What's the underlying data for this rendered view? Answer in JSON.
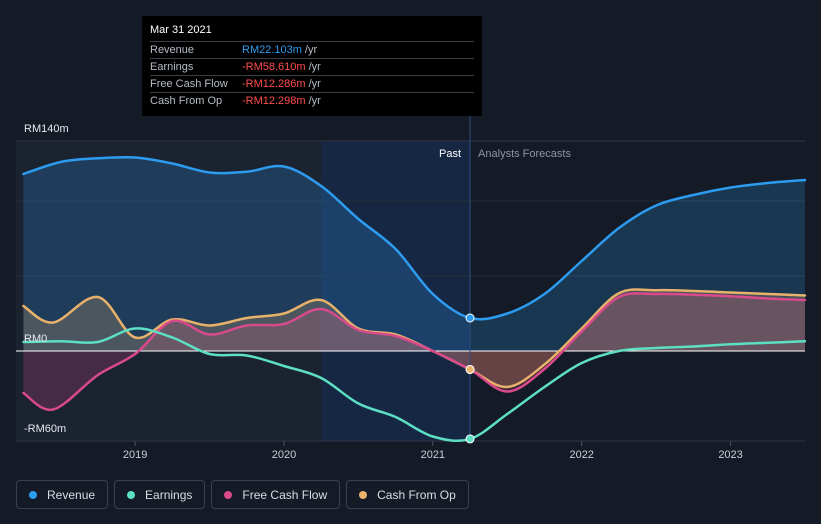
{
  "chart_data": {
    "type": "line",
    "y_axis": {
      "ticks": [
        {
          "label": "RM140m",
          "value": 140
        },
        {
          "label": "RM0",
          "value": 0
        },
        {
          "label": "-RM60m",
          "value": -60
        }
      ],
      "ylim": [
        -60,
        140
      ],
      "unit": "RM m"
    },
    "x_axis": {
      "ticks": [
        {
          "label": "2019",
          "value": 2019.0
        },
        {
          "label": "2020",
          "value": 2020.0
        },
        {
          "label": "2021",
          "value": 2021.0
        },
        {
          "label": "2022",
          "value": 2022.0
        },
        {
          "label": "2023",
          "value": 2023.0
        }
      ],
      "xlim": [
        2018.2,
        2023.5
      ]
    },
    "divider_x": 2021.25,
    "highlight_start_x": 2020.25,
    "past_label": "Past",
    "forecast_label": "Analysts Forecasts",
    "grid": true,
    "series": [
      {
        "name": "Revenue",
        "color": "#2d9cf0",
        "fill_opacity": 0.22,
        "points": [
          [
            2018.25,
            118
          ],
          [
            2018.5,
            126
          ],
          [
            2018.75,
            128.5
          ],
          [
            2019.0,
            129
          ],
          [
            2019.25,
            125
          ],
          [
            2019.5,
            119
          ],
          [
            2019.75,
            119.5
          ],
          [
            2020.0,
            123
          ],
          [
            2020.25,
            110
          ],
          [
            2020.5,
            88
          ],
          [
            2020.75,
            68
          ],
          [
            2021.0,
            38
          ],
          [
            2021.25,
            22
          ],
          [
            2021.5,
            25
          ],
          [
            2021.75,
            38
          ],
          [
            2022.0,
            60
          ],
          [
            2022.25,
            82
          ],
          [
            2022.5,
            97
          ],
          [
            2022.75,
            104
          ],
          [
            2023.0,
            109
          ],
          [
            2023.25,
            112
          ],
          [
            2023.5,
            114
          ]
        ]
      },
      {
        "name": "Earnings",
        "color": "#5ddfc4",
        "fill_opacity": 0,
        "points": [
          [
            2018.25,
            6
          ],
          [
            2018.5,
            6.5
          ],
          [
            2018.75,
            6
          ],
          [
            2019.0,
            15
          ],
          [
            2019.25,
            9
          ],
          [
            2019.5,
            -2
          ],
          [
            2019.75,
            -3
          ],
          [
            2020.0,
            -10
          ],
          [
            2020.25,
            -18
          ],
          [
            2020.5,
            -35
          ],
          [
            2020.75,
            -44
          ],
          [
            2021.0,
            -57
          ],
          [
            2021.25,
            -58.6
          ],
          [
            2021.5,
            -42
          ],
          [
            2021.75,
            -24
          ],
          [
            2022.0,
            -8
          ],
          [
            2022.25,
            0
          ],
          [
            2022.5,
            2
          ],
          [
            2022.75,
            3
          ],
          [
            2023.0,
            4.5
          ],
          [
            2023.25,
            5.5
          ],
          [
            2023.5,
            6.5
          ]
        ]
      },
      {
        "name": "Free Cash Flow",
        "color": "#d94a8c",
        "fill_opacity": 0.22,
        "points": [
          [
            2018.25,
            -28
          ],
          [
            2018.45,
            -39
          ],
          [
            2018.75,
            -16
          ],
          [
            2019.0,
            -2
          ],
          [
            2019.25,
            20
          ],
          [
            2019.5,
            11
          ],
          [
            2019.75,
            17
          ],
          [
            2020.0,
            18
          ],
          [
            2020.25,
            28
          ],
          [
            2020.5,
            14
          ],
          [
            2020.75,
            10
          ],
          [
            2021.0,
            0
          ],
          [
            2021.25,
            -12.3
          ],
          [
            2021.5,
            -27
          ],
          [
            2021.75,
            -12
          ],
          [
            2022.0,
            13
          ],
          [
            2022.25,
            36
          ],
          [
            2022.5,
            38
          ],
          [
            2022.75,
            37.5
          ],
          [
            2023.0,
            36.5
          ],
          [
            2023.25,
            35
          ],
          [
            2023.5,
            34
          ]
        ]
      },
      {
        "name": "Cash From Op",
        "color": "#e8b26b",
        "fill_opacity": 0.22,
        "points": [
          [
            2018.25,
            30
          ],
          [
            2018.45,
            19
          ],
          [
            2018.75,
            36
          ],
          [
            2019.0,
            9
          ],
          [
            2019.25,
            21
          ],
          [
            2019.5,
            17
          ],
          [
            2019.75,
            22
          ],
          [
            2020.0,
            25
          ],
          [
            2020.25,
            34
          ],
          [
            2020.5,
            15
          ],
          [
            2020.75,
            11
          ],
          [
            2021.0,
            0
          ],
          [
            2021.25,
            -12.3
          ],
          [
            2021.5,
            -24
          ],
          [
            2021.75,
            -9
          ],
          [
            2022.0,
            15
          ],
          [
            2022.25,
            38.5
          ],
          [
            2022.5,
            40.5
          ],
          [
            2022.75,
            40
          ],
          [
            2023.0,
            39
          ],
          [
            2023.25,
            38
          ],
          [
            2023.5,
            37
          ]
        ]
      }
    ],
    "tooltip": {
      "date": "Mar 31 2021",
      "rows": [
        {
          "label": "Revenue",
          "value": "RM22.103m",
          "unit": "/yr",
          "color": "#2d9cf0"
        },
        {
          "label": "Earnings",
          "value": "-RM58.610m",
          "unit": "/yr",
          "color": "#ff4d4d"
        },
        {
          "label": "Free Cash Flow",
          "value": "-RM12.286m",
          "unit": "/yr",
          "color": "#ff4d4d"
        },
        {
          "label": "Cash From Op",
          "value": "-RM12.298m",
          "unit": "/yr",
          "color": "#ff4d4d"
        }
      ]
    }
  },
  "legend": [
    {
      "label": "Revenue",
      "color": "#2d9cf0"
    },
    {
      "label": "Earnings",
      "color": "#5ddfc4"
    },
    {
      "label": "Free Cash Flow",
      "color": "#d94a8c"
    },
    {
      "label": "Cash From Op",
      "color": "#e8b26b"
    }
  ]
}
